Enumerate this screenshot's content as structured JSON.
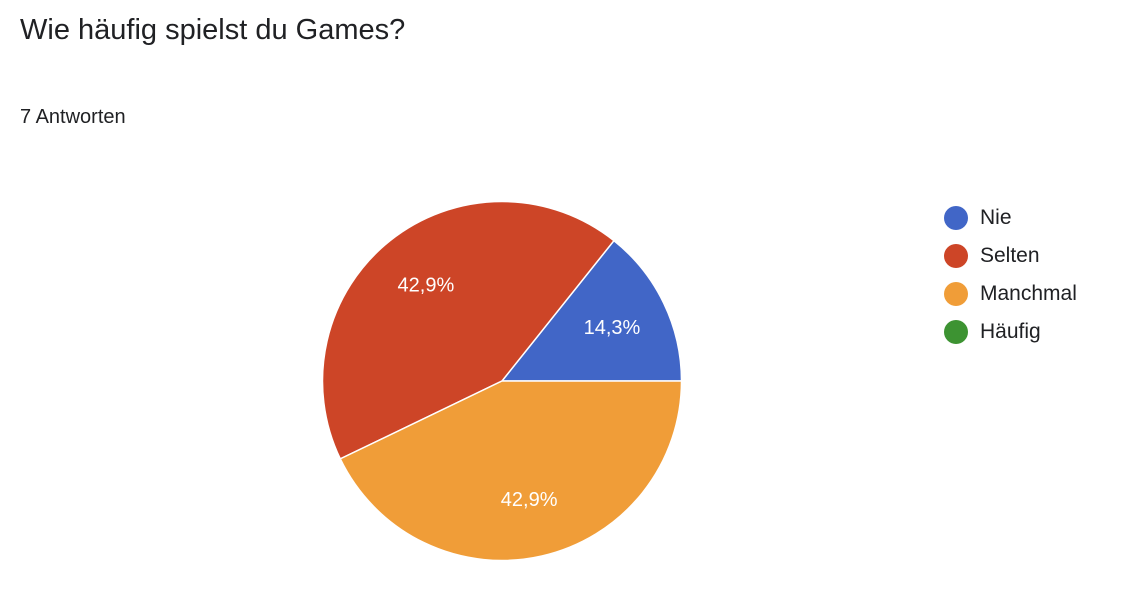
{
  "header": {
    "question": "Wie häufig spielst du Games?",
    "responses": "7 Antworten"
  },
  "chart_data": {
    "type": "pie",
    "title": "Wie häufig spielst du Games?",
    "subtitle": "7 Antworten",
    "legend_position": "right",
    "start_direction": "east-counterclockwise",
    "slices": [
      {
        "label": "Nie",
        "value": 14.3,
        "display": "14,3%",
        "color": "#4166c7"
      },
      {
        "label": "Selten",
        "value": 42.9,
        "display": "42,9%",
        "color": "#cd4527"
      },
      {
        "label": "Manchmal",
        "value": 42.9,
        "display": "42,9%",
        "color": "#f09d38"
      },
      {
        "label": "Häufig",
        "value": 0,
        "display": "",
        "color": "#3d9332"
      }
    ]
  }
}
